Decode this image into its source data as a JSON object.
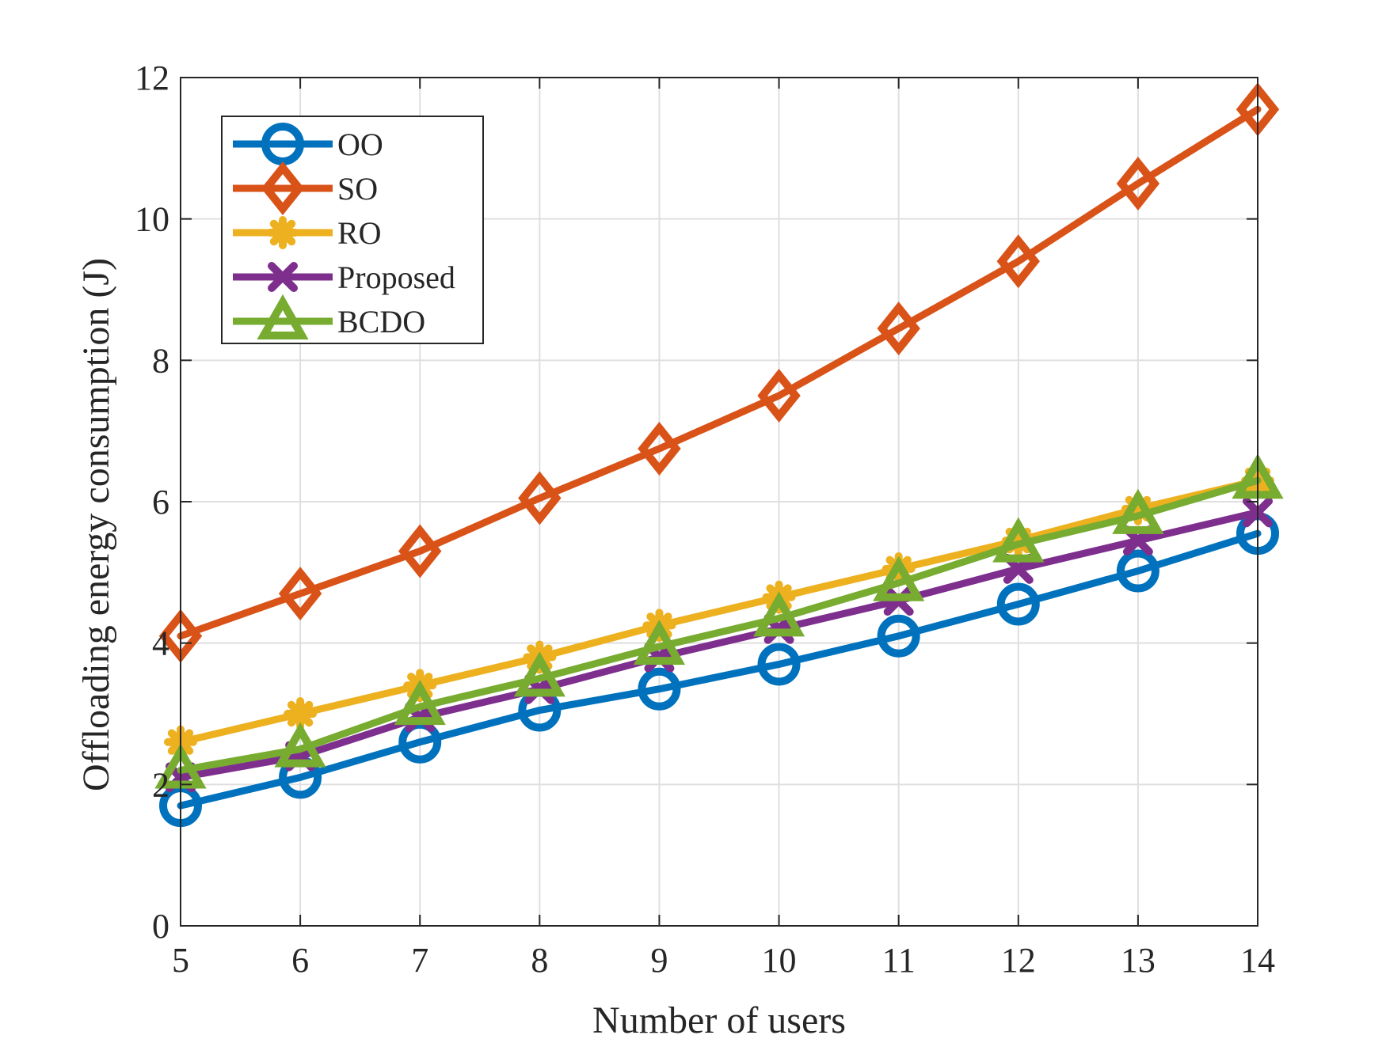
{
  "chart_data": {
    "type": "line",
    "title": "",
    "xlabel": "Number of users",
    "ylabel": "Offloading energy consumption (J)",
    "x": [
      5,
      6,
      7,
      8,
      9,
      10,
      11,
      12,
      13,
      14
    ],
    "xlim": [
      5,
      14
    ],
    "ylim": [
      0,
      12
    ],
    "xticks": [
      5,
      6,
      7,
      8,
      9,
      10,
      11,
      12,
      13,
      14
    ],
    "yticks": [
      0,
      2,
      4,
      6,
      8,
      10,
      12
    ],
    "grid": true,
    "legend_position": "top-left",
    "series": [
      {
        "name": "OO",
        "marker": "circle",
        "color": "#0072BD",
        "values": [
          1.7,
          2.1,
          2.6,
          3.05,
          3.35,
          3.7,
          4.1,
          4.55,
          5.02,
          5.55
        ]
      },
      {
        "name": "SO",
        "marker": "diamond",
        "color": "#D95319",
        "values": [
          4.1,
          4.7,
          5.3,
          6.05,
          6.75,
          7.5,
          8.45,
          9.4,
          10.5,
          11.55
        ]
      },
      {
        "name": "RO",
        "marker": "asterisk",
        "color": "#EDB120",
        "values": [
          2.6,
          3.0,
          3.4,
          3.8,
          4.25,
          4.65,
          5.05,
          5.45,
          5.9,
          6.3
        ]
      },
      {
        "name": "Proposed",
        "marker": "x",
        "color": "#7E2F8E",
        "values": [
          2.1,
          2.4,
          2.95,
          3.35,
          3.8,
          4.2,
          4.6,
          5.05,
          5.45,
          5.85
        ]
      },
      {
        "name": "BCDO",
        "marker": "triangle",
        "color": "#77AC30",
        "values": [
          2.2,
          2.5,
          3.1,
          3.5,
          3.95,
          4.35,
          4.85,
          5.4,
          5.8,
          6.3
        ]
      }
    ]
  }
}
